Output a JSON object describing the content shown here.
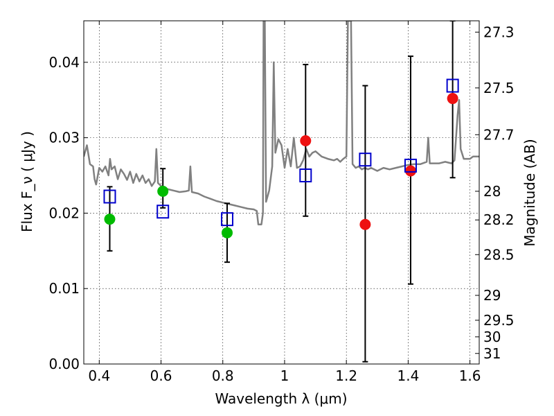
{
  "chart_data": {
    "type": "scatter",
    "title": "",
    "xlabel": "Wavelength  λ (μm)",
    "ylabel": "Flux  F_ν  ( μJy )",
    "y2label": "Magnitude (AB)",
    "xlim": [
      0.35,
      1.63
    ],
    "ylim": [
      0.0,
      0.0455
    ],
    "grid": true,
    "x_ticks": [
      0.4,
      0.6,
      0.8,
      1.0,
      1.2,
      1.4,
      1.6
    ],
    "x_tick_labels": [
      "0.4",
      "0.6",
      "0.8",
      "1",
      "1.2",
      "1.4",
      "1.6"
    ],
    "y_ticks": [
      0.0,
      0.01,
      0.02,
      0.03,
      0.04
    ],
    "y_tick_labels": [
      "0.00",
      "0.01",
      "0.02",
      "0.03",
      "0.04"
    ],
    "y2_ticks": [
      {
        "label": "27.3",
        "flux": 0.044
      },
      {
        "label": "27.5",
        "flux": 0.0366
      },
      {
        "label": "27.7",
        "flux": 0.0304
      },
      {
        "label": "28",
        "flux": 0.0229
      },
      {
        "label": "28.2",
        "flux": 0.0191
      },
      {
        "label": "28.5",
        "flux": 0.0145
      },
      {
        "label": "29",
        "flux": 0.0091
      },
      {
        "label": "29.5",
        "flux": 0.0058
      },
      {
        "label": "30",
        "flux": 0.0036
      },
      {
        "label": "31",
        "flux": 0.0014
      }
    ],
    "series": [
      {
        "marker": "circle",
        "color": "#00bb00",
        "points": [
          {
            "x": 0.434,
            "y": 0.0192,
            "err": [
              0.015,
              0.0235
            ]
          },
          {
            "x": 0.606,
            "y": 0.0229,
            "err": [
              0.0207,
              0.0259
            ]
          },
          {
            "x": 0.814,
            "y": 0.0174,
            "err": [
              0.0135,
              0.0213
            ]
          }
        ]
      },
      {
        "marker": "circle",
        "color": "#ee1111",
        "points": [
          {
            "x": 1.068,
            "y": 0.0296,
            "err": [
              0.0196,
              0.0397
            ]
          },
          {
            "x": 1.261,
            "y": 0.0185,
            "err": [
              0.0003,
              0.0369
            ]
          },
          {
            "x": 1.408,
            "y": 0.0256,
            "err": [
              0.0106,
              0.0408
            ]
          },
          {
            "x": 1.544,
            "y": 0.0352,
            "err": [
              0.0247,
              0.0455
            ]
          }
        ]
      },
      {
        "marker": "square-open",
        "color": "#0000cc",
        "points": [
          {
            "x": 0.434,
            "y": 0.0222
          },
          {
            "x": 0.606,
            "y": 0.0202
          },
          {
            "x": 0.814,
            "y": 0.0192
          },
          {
            "x": 1.068,
            "y": 0.025
          },
          {
            "x": 1.261,
            "y": 0.0271
          },
          {
            "x": 1.408,
            "y": 0.0263
          },
          {
            "x": 1.544,
            "y": 0.0369
          }
        ]
      },
      {
        "marker": "line",
        "color": "#808080",
        "points": [
          [
            0.35,
            0.0275
          ],
          [
            0.36,
            0.029
          ],
          [
            0.37,
            0.0265
          ],
          [
            0.38,
            0.0262
          ],
          [
            0.385,
            0.0245
          ],
          [
            0.39,
            0.0238
          ],
          [
            0.4,
            0.026
          ],
          [
            0.41,
            0.0255
          ],
          [
            0.42,
            0.0262
          ],
          [
            0.43,
            0.025
          ],
          [
            0.435,
            0.0272
          ],
          [
            0.44,
            0.0258
          ],
          [
            0.45,
            0.0262
          ],
          [
            0.46,
            0.0245
          ],
          [
            0.47,
            0.0258
          ],
          [
            0.48,
            0.0252
          ],
          [
            0.49,
            0.0244
          ],
          [
            0.5,
            0.0255
          ],
          [
            0.51,
            0.024
          ],
          [
            0.52,
            0.0252
          ],
          [
            0.53,
            0.0242
          ],
          [
            0.54,
            0.025
          ],
          [
            0.55,
            0.024
          ],
          [
            0.56,
            0.0245
          ],
          [
            0.57,
            0.0236
          ],
          [
            0.58,
            0.0242
          ],
          [
            0.585,
            0.0285
          ],
          [
            0.59,
            0.024
          ],
          [
            0.6,
            0.0236
          ],
          [
            0.62,
            0.0232
          ],
          [
            0.64,
            0.023
          ],
          [
            0.66,
            0.0228
          ],
          [
            0.68,
            0.0229
          ],
          [
            0.69,
            0.023
          ],
          [
            0.695,
            0.0262
          ],
          [
            0.7,
            0.0228
          ],
          [
            0.72,
            0.0226
          ],
          [
            0.74,
            0.0222
          ],
          [
            0.76,
            0.0219
          ],
          [
            0.78,
            0.0216
          ],
          [
            0.8,
            0.0214
          ],
          [
            0.82,
            0.0212
          ],
          [
            0.84,
            0.021
          ],
          [
            0.86,
            0.0208
          ],
          [
            0.88,
            0.0206
          ],
          [
            0.9,
            0.0205
          ],
          [
            0.91,
            0.0203
          ],
          [
            0.915,
            0.0185
          ],
          [
            0.925,
            0.0185
          ],
          [
            0.93,
            0.02
          ],
          [
            0.932,
            0.0455
          ],
          [
            0.936,
            0.0455
          ],
          [
            0.94,
            0.0215
          ],
          [
            0.95,
            0.023
          ],
          [
            0.96,
            0.0262
          ],
          [
            0.965,
            0.04
          ],
          [
            0.97,
            0.028
          ],
          [
            0.98,
            0.0298
          ],
          [
            0.99,
            0.029
          ],
          [
            1.0,
            0.026
          ],
          [
            1.01,
            0.0285
          ],
          [
            1.02,
            0.0262
          ],
          [
            1.03,
            0.03
          ],
          [
            1.04,
            0.026
          ],
          [
            1.05,
            0.0262
          ],
          [
            1.06,
            0.027
          ],
          [
            1.07,
            0.0285
          ],
          [
            1.08,
            0.0275
          ],
          [
            1.09,
            0.028
          ],
          [
            1.1,
            0.0282
          ],
          [
            1.12,
            0.0275
          ],
          [
            1.14,
            0.0272
          ],
          [
            1.16,
            0.027
          ],
          [
            1.17,
            0.0272
          ],
          [
            1.18,
            0.0268
          ],
          [
            1.19,
            0.0272
          ],
          [
            1.2,
            0.0275
          ],
          [
            1.205,
            0.0455
          ],
          [
            1.215,
            0.0455
          ],
          [
            1.22,
            0.0265
          ],
          [
            1.23,
            0.026
          ],
          [
            1.24,
            0.0262
          ],
          [
            1.25,
            0.0258
          ],
          [
            1.26,
            0.026
          ],
          [
            1.27,
            0.0258
          ],
          [
            1.28,
            0.026
          ],
          [
            1.3,
            0.0256
          ],
          [
            1.32,
            0.026
          ],
          [
            1.34,
            0.0258
          ],
          [
            1.36,
            0.026
          ],
          [
            1.38,
            0.0262
          ],
          [
            1.4,
            0.0264
          ],
          [
            1.42,
            0.0265
          ],
          [
            1.44,
            0.0265
          ],
          [
            1.46,
            0.0268
          ],
          [
            1.465,
            0.03
          ],
          [
            1.47,
            0.0266
          ],
          [
            1.48,
            0.0266
          ],
          [
            1.5,
            0.0266
          ],
          [
            1.52,
            0.0268
          ],
          [
            1.54,
            0.0266
          ],
          [
            1.55,
            0.027
          ],
          [
            1.56,
            0.033
          ],
          [
            1.565,
            0.035
          ],
          [
            1.57,
            0.0285
          ],
          [
            1.58,
            0.0272
          ],
          [
            1.6,
            0.0272
          ],
          [
            1.61,
            0.0275
          ],
          [
            1.62,
            0.0275
          ],
          [
            1.63,
            0.0275
          ]
        ]
      }
    ]
  }
}
